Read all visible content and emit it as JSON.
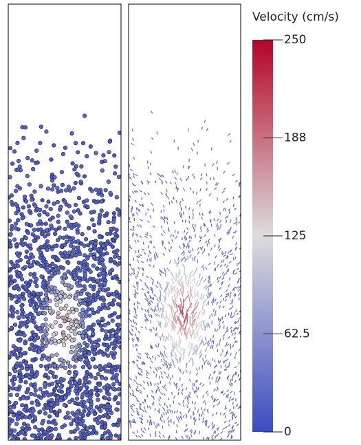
{
  "colorbar": {
    "title": "Velocity (cm/s)",
    "range": [
      0,
      250
    ],
    "ticks": [
      0,
      62.5,
      125,
      {
        "value": 187.5,
        "label": "188"
      },
      250
    ],
    "colors": [
      "#3b4cc0",
      "#dddcdc",
      "#b40426"
    ]
  }
}
